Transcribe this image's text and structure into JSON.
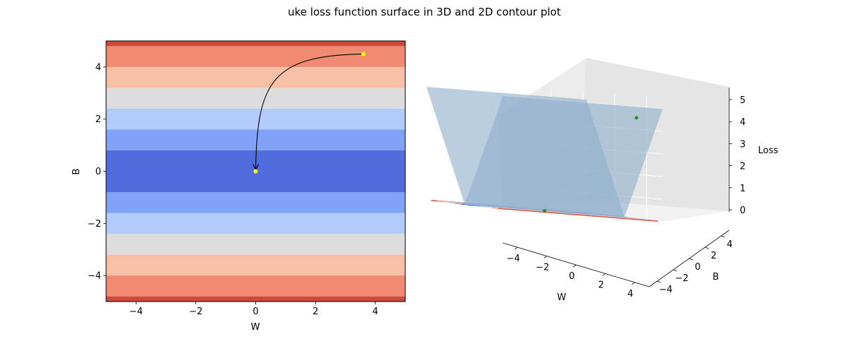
{
  "figure": {
    "title": "uke loss function surface in 3D and 2D contour plot"
  },
  "chart_data": [
    {
      "type": "contour",
      "xlabel": "W",
      "ylabel": "B",
      "xlim": [
        -5,
        5
      ],
      "ylim": [
        -5,
        5
      ],
      "xticks": [
        -4,
        -2,
        0,
        2,
        4
      ],
      "yticks": [
        -4,
        -2,
        0,
        2,
        4
      ],
      "x_tick_labels": [
        "−4",
        "−2",
        "0",
        "2",
        "4"
      ],
      "y_tick_labels": [
        "−4",
        "−2",
        "0",
        "2",
        "4"
      ],
      "colormap": "coolwarm",
      "bands": [
        {
          "b_from": -5.0,
          "b_to": -4.8,
          "color": "#cc4b3c"
        },
        {
          "b_from": -4.8,
          "b_to": -4.0,
          "color": "#f08a70"
        },
        {
          "b_from": -4.0,
          "b_to": -3.2,
          "color": "#f7bfa6"
        },
        {
          "b_from": -3.2,
          "b_to": -2.4,
          "color": "#dcdcdc"
        },
        {
          "b_from": -2.4,
          "b_to": -1.6,
          "color": "#b2cbfb"
        },
        {
          "b_from": -1.6,
          "b_to": -0.8,
          "color": "#80a3f8"
        },
        {
          "b_from": -0.8,
          "b_to": 0.8,
          "color": "#516ddb"
        },
        {
          "b_from": 0.8,
          "b_to": 1.6,
          "color": "#80a3f8"
        },
        {
          "b_from": 1.6,
          "b_to": 2.4,
          "color": "#b2cbfb"
        },
        {
          "b_from": 2.4,
          "b_to": 3.2,
          "color": "#dcdcdc"
        },
        {
          "b_from": 3.2,
          "b_to": 4.0,
          "color": "#f7bfa6"
        },
        {
          "b_from": 4.0,
          "b_to": 4.8,
          "color": "#f08a70"
        },
        {
          "b_from": 4.8,
          "b_to": 5.0,
          "color": "#cc4b3c"
        }
      ],
      "start_point": {
        "w": 3.6,
        "b": 4.5,
        "color": "#ffff00"
      },
      "end_point": {
        "w": 0.0,
        "b": 0.0,
        "color": "#ffff00"
      },
      "path_arrow": {
        "from": [
          3.6,
          4.5
        ],
        "to": [
          0.0,
          0.0
        ],
        "color": "#000000"
      }
    },
    {
      "type": "surface3d",
      "xlabel": "W",
      "ylabel": "B",
      "zlabel": "Loss",
      "xlim": [
        -5,
        5
      ],
      "ylim": [
        -5,
        5
      ],
      "zlim": [
        0,
        5
      ],
      "xticks": [
        -4,
        -2,
        0,
        2,
        4
      ],
      "yticks": [
        -4,
        -2,
        0,
        2,
        4
      ],
      "zticks": [
        0,
        1,
        2,
        3,
        4,
        5
      ],
      "x_tick_labels": [
        "−4",
        "−2",
        "0",
        "2",
        "4"
      ],
      "y_tick_labels": [
        "−4",
        "−2",
        "0",
        "2",
        "4"
      ],
      "z_tick_labels": [
        "0",
        "1",
        "2",
        "3",
        "4",
        "5"
      ],
      "surface": "loss = |B|",
      "surface_color": "#8fb0cc",
      "contour_offset_z": 0,
      "contour_levels": [
        {
          "b": -4.4,
          "color": "#d6604d"
        },
        {
          "b": -3.6,
          "color": "#f4a582"
        },
        {
          "b": -2.8,
          "color": "#dddddd"
        },
        {
          "b": -2.0,
          "color": "#b4ccf7"
        },
        {
          "b": -1.2,
          "color": "#86a8f6"
        },
        {
          "b": -0.4,
          "color": "#4d6bd6"
        },
        {
          "b": 0.4,
          "color": "#4d6bd6"
        },
        {
          "b": 1.2,
          "color": "#86a8f6"
        },
        {
          "b": 2.0,
          "color": "#b4ccf7"
        },
        {
          "b": 2.8,
          "color": "#dddddd"
        },
        {
          "b": 3.6,
          "color": "#f4a582"
        },
        {
          "b": 4.4,
          "color": "#d6604d"
        }
      ],
      "points": [
        {
          "w": 3.6,
          "b": 4.5,
          "loss": 4.5,
          "color": "#1a8c2e"
        },
        {
          "w": 0.0,
          "b": 0.0,
          "loss": 0.0,
          "color": "#1a8c2e"
        }
      ]
    }
  ]
}
